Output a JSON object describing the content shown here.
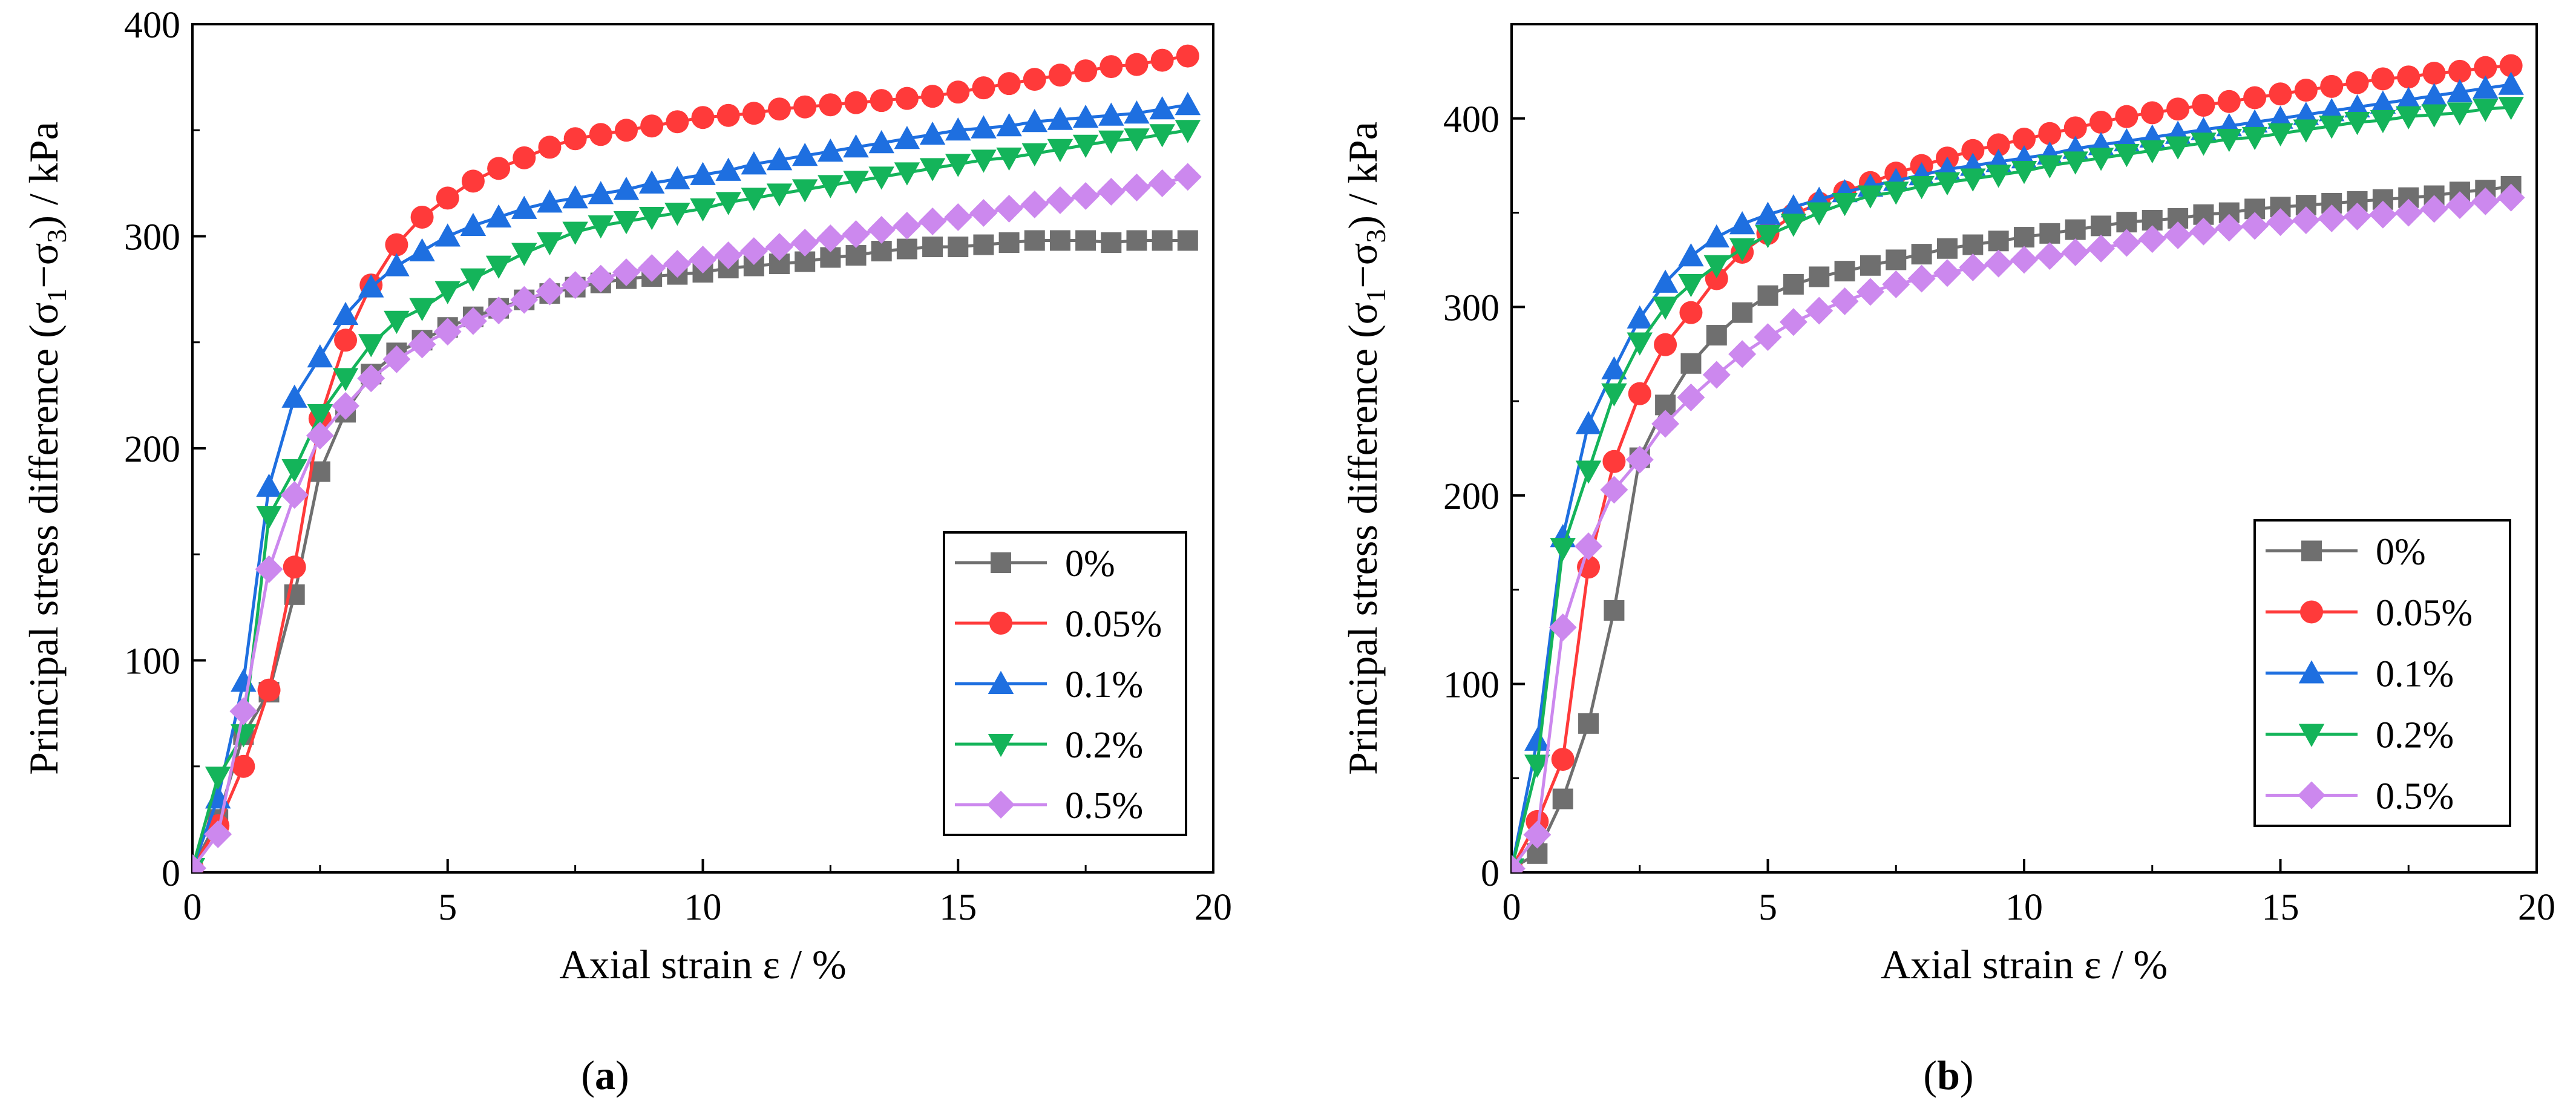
{
  "chart_data": [
    {
      "id": "a",
      "type": "line",
      "panel_label": "a",
      "xlabel": "Axial strain ε / %",
      "ylabel_parts": [
        "Principal stress difference (σ",
        "1",
        "−σ",
        "3",
        ") / kPa"
      ],
      "xlim": [
        0,
        20
      ],
      "ylim": [
        0,
        400
      ],
      "xticks": [
        0,
        5,
        10,
        15,
        20
      ],
      "yticks": [
        0,
        100,
        200,
        300,
        400
      ],
      "legend_position": "bottom-right",
      "x": [
        0,
        0.5,
        1,
        1.5,
        2,
        2.5,
        3,
        3.5,
        4,
        4.5,
        5,
        5.5,
        6,
        6.5,
        7,
        7.5,
        8,
        8.5,
        9,
        9.5,
        10,
        10.5,
        11,
        11.5,
        12,
        12.5,
        13,
        13.5,
        14,
        14.5,
        15,
        15.5,
        16,
        16.5,
        17,
        17.5,
        18,
        18.5,
        19,
        19.5
      ],
      "series": [
        {
          "name": "0%",
          "color": "#6f6f6f",
          "marker": "square",
          "values": [
            2,
            25,
            65,
            85,
            131,
            189,
            217,
            235,
            245,
            251,
            257,
            262,
            266,
            270,
            273,
            276,
            278,
            280,
            281,
            282,
            283,
            285,
            286,
            287,
            288,
            290,
            291,
            293,
            294,
            295,
            295,
            296,
            297,
            298,
            298,
            298,
            297,
            298,
            298,
            298
          ]
        },
        {
          "name": "0.05%",
          "color": "#ff3a3a",
          "marker": "circle",
          "values": [
            2,
            22,
            50,
            86,
            144,
            214,
            251,
            277,
            296,
            309,
            318,
            326,
            332,
            337,
            342,
            346,
            348,
            350,
            352,
            354,
            356,
            357,
            358,
            360,
            361,
            362,
            363,
            364,
            365,
            366,
            368,
            370,
            372,
            374,
            376,
            378,
            380,
            381,
            383,
            385
          ]
        },
        {
          "name": "0.1%",
          "color": "#1e6fe0",
          "marker": "triangle-up",
          "values": [
            2,
            35,
            90,
            182,
            224,
            243,
            263,
            276,
            286,
            293,
            300,
            305,
            309,
            313,
            316,
            318,
            320,
            322,
            325,
            327,
            329,
            331,
            334,
            336,
            338,
            340,
            342,
            344,
            346,
            348,
            350,
            351,
            352,
            354,
            355,
            356,
            357,
            358,
            360,
            362
          ]
        },
        {
          "name": "0.2%",
          "color": "#14b45a",
          "marker": "triangle-down",
          "values": [
            2,
            45,
            65,
            168,
            190,
            216,
            233,
            249,
            260,
            266,
            274,
            280,
            286,
            292,
            297,
            302,
            305,
            307,
            309,
            311,
            313,
            316,
            318,
            320,
            322,
            324,
            326,
            328,
            330,
            332,
            334,
            336,
            337,
            339,
            341,
            343,
            345,
            346,
            348,
            350
          ]
        },
        {
          "name": "0.5%",
          "color": "#cc88ee",
          "marker": "diamond",
          "values": [
            2,
            18,
            76,
            143,
            178,
            206,
            220,
            233,
            242,
            249,
            255,
            260,
            265,
            270,
            274,
            277,
            280,
            283,
            285,
            287,
            289,
            291,
            293,
            295,
            297,
            299,
            301,
            303,
            305,
            307,
            309,
            311,
            313,
            315,
            317,
            319,
            321,
            323,
            325,
            328
          ]
        }
      ]
    },
    {
      "id": "b",
      "type": "line",
      "panel_label": "b",
      "xlabel": "Axial strain ε / %",
      "ylabel_parts": [
        "Principal stress difference  (σ",
        "1",
        "−σ",
        "3",
        ") / kPa"
      ],
      "xlim": [
        0,
        20
      ],
      "ylim": [
        0,
        450
      ],
      "xticks": [
        0,
        5,
        10,
        15,
        20
      ],
      "yticks": [
        0,
        100,
        200,
        300,
        400
      ],
      "legend_position": "bottom-right",
      "x": [
        0,
        0.5,
        1,
        1.5,
        2,
        2.5,
        3,
        3.5,
        4,
        4.5,
        5,
        5.5,
        6,
        6.5,
        7,
        7.5,
        8,
        8.5,
        9,
        9.5,
        10,
        10.5,
        11,
        11.5,
        12,
        12.5,
        13,
        13.5,
        14,
        14.5,
        15,
        15.5,
        16,
        16.5,
        17,
        17.5,
        18,
        18.5,
        19,
        19.5
      ],
      "series": [
        {
          "name": "0%",
          "color": "#6f6f6f",
          "marker": "square",
          "values": [
            2,
            10,
            39,
            79,
            139,
            220,
            248,
            270,
            285,
            297,
            306,
            312,
            316,
            319,
            322,
            325,
            328,
            331,
            333,
            335,
            337,
            339,
            341,
            343,
            345,
            346,
            347,
            349,
            350,
            352,
            353,
            354,
            355,
            356,
            357,
            358,
            359,
            361,
            362,
            364
          ]
        },
        {
          "name": "0.05%",
          "color": "#ff3a3a",
          "marker": "circle",
          "values": [
            2,
            27,
            60,
            162,
            218,
            254,
            280,
            297,
            315,
            329,
            339,
            349,
            355,
            361,
            366,
            371,
            375,
            379,
            383,
            386,
            389,
            392,
            395,
            398,
            401,
            403,
            405,
            407,
            409,
            411,
            413,
            415,
            417,
            419,
            421,
            422,
            424,
            425,
            427,
            428
          ]
        },
        {
          "name": "0.1%",
          "color": "#1e6fe0",
          "marker": "triangle-up",
          "values": [
            2,
            70,
            178,
            238,
            267,
            294,
            313,
            327,
            337,
            344,
            349,
            353,
            357,
            361,
            364,
            367,
            370,
            373,
            375,
            377,
            379,
            381,
            384,
            386,
            388,
            390,
            392,
            394,
            396,
            398,
            400,
            402,
            404,
            406,
            408,
            410,
            412,
            414,
            416,
            418
          ]
        },
        {
          "name": "0.2%",
          "color": "#14b45a",
          "marker": "triangle-down",
          "values": [
            2,
            57,
            172,
            213,
            254,
            281,
            300,
            312,
            322,
            331,
            338,
            344,
            350,
            355,
            359,
            361,
            364,
            366,
            368,
            370,
            372,
            375,
            377,
            379,
            381,
            383,
            385,
            387,
            389,
            390,
            392,
            394,
            396,
            398,
            399,
            401,
            402,
            403,
            405,
            406
          ]
        },
        {
          "name": "0.5%",
          "color": "#cc88ee",
          "marker": "diamond",
          "values": [
            2,
            20,
            130,
            173,
            203,
            219,
            238,
            252,
            264,
            275,
            284,
            292,
            298,
            303,
            308,
            312,
            315,
            318,
            321,
            323,
            325,
            327,
            329,
            331,
            334,
            336,
            338,
            340,
            342,
            343,
            345,
            346,
            347,
            348,
            349,
            350,
            352,
            354,
            356,
            358
          ]
        }
      ]
    }
  ]
}
